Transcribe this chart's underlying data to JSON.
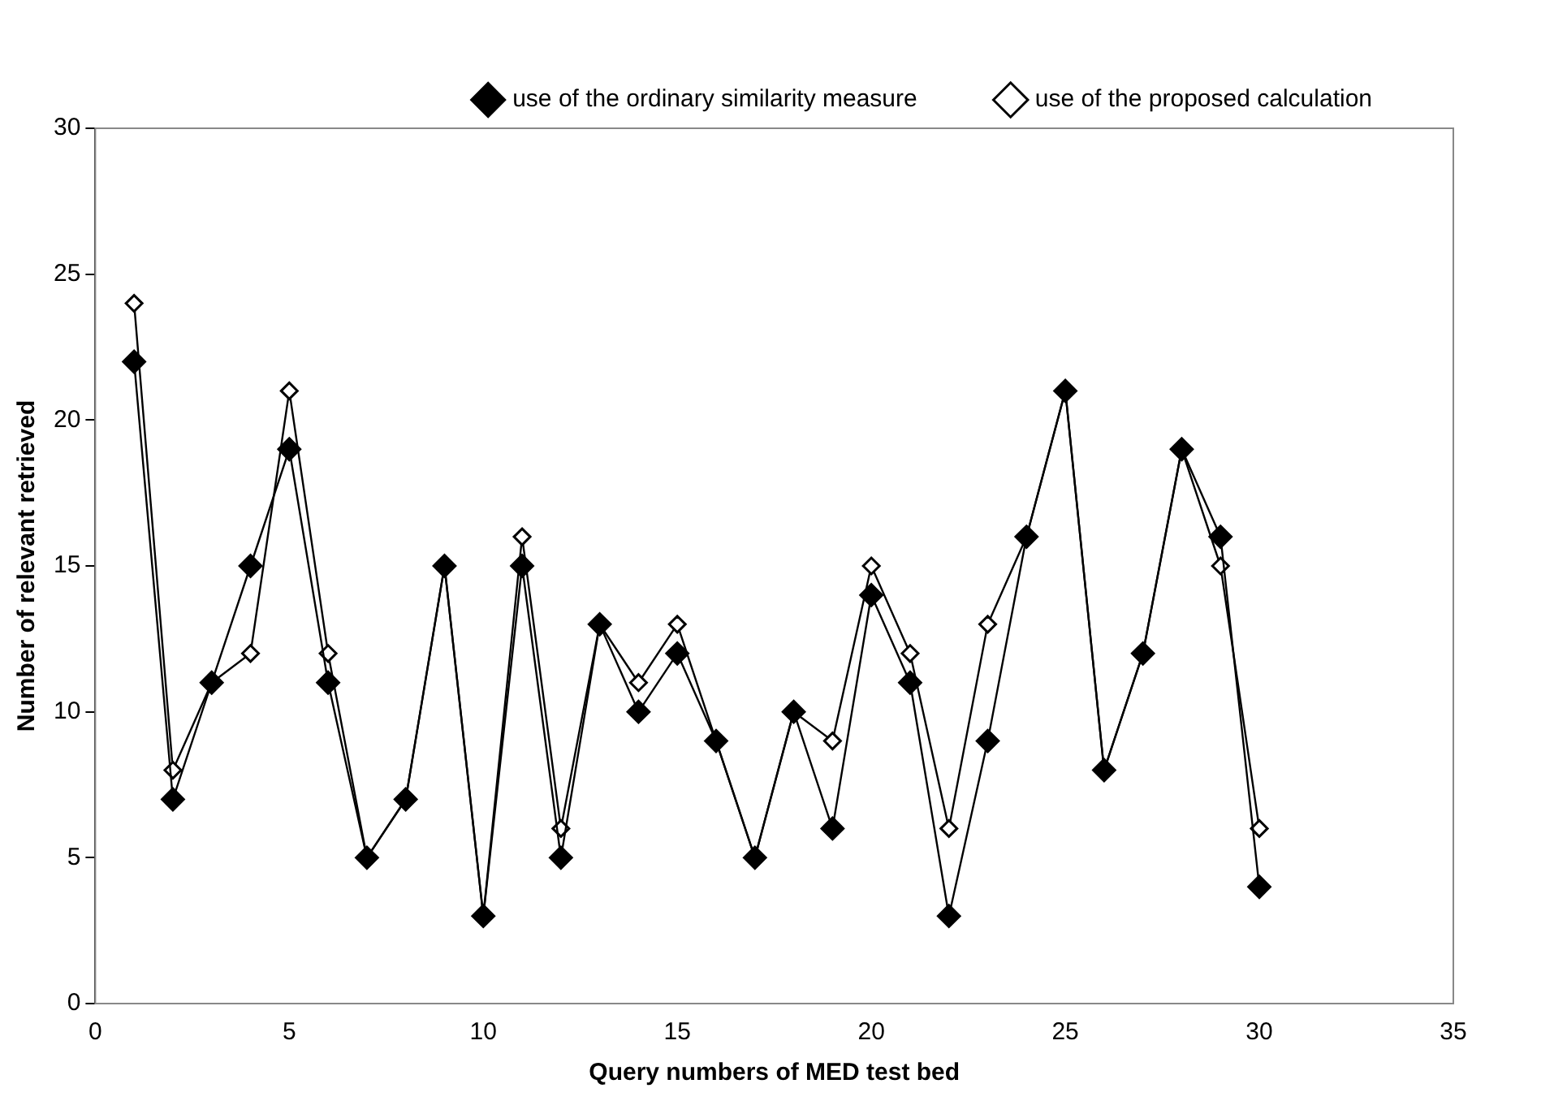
{
  "chart_data": {
    "type": "line",
    "xlabel": "Query numbers of MED test bed",
    "ylabel": "Number of relevant retrieved",
    "x": [
      1,
      2,
      3,
      4,
      5,
      6,
      7,
      8,
      9,
      10,
      11,
      12,
      13,
      14,
      15,
      16,
      17,
      18,
      19,
      20,
      21,
      22,
      23,
      24,
      25,
      26,
      27,
      28,
      29,
      30
    ],
    "series": [
      {
        "name": "use of the ordinary similarity measure",
        "color": "#000000",
        "values": [
          22,
          7,
          11,
          15,
          19,
          11,
          5,
          7,
          15,
          3,
          15,
          5,
          13,
          10,
          12,
          9,
          5,
          10,
          6,
          14,
          11,
          3,
          9,
          16,
          21,
          8,
          12,
          19,
          16,
          4
        ]
      },
      {
        "name": "use of the proposed calculation",
        "color": "#000000",
        "values": [
          24,
          8,
          11,
          12,
          21,
          12,
          5,
          7,
          15,
          3,
          16,
          6,
          13,
          11,
          13,
          9,
          5,
          10,
          9,
          15,
          12,
          6,
          13,
          16,
          21,
          8,
          12,
          19,
          15,
          6
        ]
      }
    ],
    "xlim": [
      0,
      35
    ],
    "xticks": [
      0,
      5,
      10,
      15,
      20,
      25,
      30,
      35
    ],
    "ylim": [
      0,
      30
    ],
    "yticks": [
      0,
      5,
      10,
      15,
      20,
      25,
      30
    ],
    "grid": false,
    "legend": "top",
    "marker": "diamond",
    "line_style": "solid"
  }
}
